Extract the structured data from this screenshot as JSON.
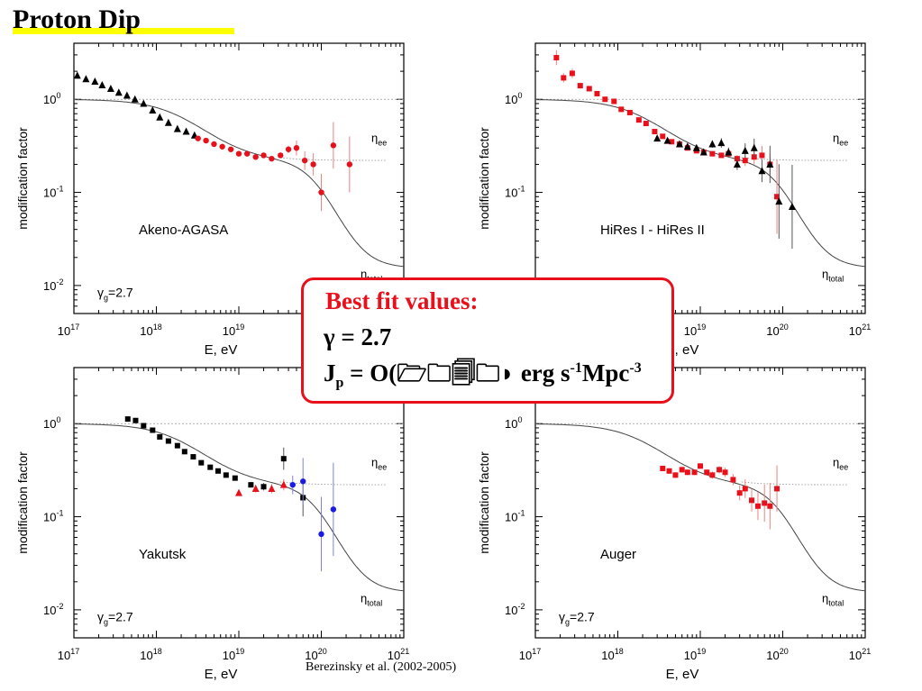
{
  "slide": {
    "title": "Proton Dip",
    "citation": "Berezinsky et al.  (2002-2005)"
  },
  "fit_box": {
    "title": "Best fit values:",
    "gamma": "γ = 2.7",
    "jp_prefix": "J",
    "jp_sub": "p",
    "jp_middle": " = O(",
    "jp_garbled": "🗁🗀🗐🗀◗",
    "jp_units": "  erg s",
    "jp_sup1": "-1",
    "jp_units2": "Mpc",
    "jp_sup2": "-3"
  },
  "colors": {
    "red": "#e8101a",
    "black": "#000000",
    "blue": "#1a1ae6",
    "curve": "#444444",
    "ref": "#999999",
    "highlight": "#ffff00"
  },
  "chart_data": [
    {
      "type": "scatter",
      "panel": "Akeno-AGASA",
      "log_x": true,
      "log_y": true,
      "xlim": [
        1e+17,
        1e+21
      ],
      "ylim": [
        0.005,
        4
      ],
      "xlabel": "E, eV",
      "ylabel": "modification factor",
      "x_ticks": [
        "10^17",
        "10^18",
        "10^19",
        "10^20",
        "10^21"
      ],
      "y_ticks": [
        "10^-2",
        "10^-1",
        "10^0"
      ],
      "label": "Akeno-AGASA",
      "gamma_label": "γg=2.7",
      "curve_labels": {
        "eta_ee": "ηee",
        "eta_total": "ηtotal"
      },
      "series": [
        {
          "name": "Akeno",
          "marker": "triangle",
          "color": "black",
          "x": [
            1.1e+17,
            1.4e+17,
            1.8e+17,
            2.2e+17,
            2.8e+17,
            3.5e+17,
            4.4e+17,
            5.5e+17,
            7e+17,
            9e+17,
            1.1e+18,
            1.4e+18,
            1.8e+18,
            2.3e+18,
            2.9e+18
          ],
          "y": [
            1.8,
            1.65,
            1.55,
            1.42,
            1.3,
            1.18,
            1.1,
            1.0,
            0.9,
            0.76,
            0.64,
            0.56,
            0.48,
            0.45,
            0.41
          ]
        },
        {
          "name": "AGASA",
          "marker": "circle",
          "color": "red",
          "x": [
            3.2e+18,
            4e+18,
            5e+18,
            6.3e+18,
            8e+18,
            1e+19,
            1.26e+19,
            1.6e+19,
            2e+19,
            2.5e+19,
            3.2e+19,
            4e+19,
            5e+19,
            6.3e+19,
            8e+19,
            1e+20,
            1.4e+20,
            2.2e+20
          ],
          "y": [
            0.38,
            0.36,
            0.33,
            0.31,
            0.29,
            0.26,
            0.26,
            0.24,
            0.25,
            0.23,
            0.25,
            0.29,
            0.3,
            0.22,
            0.2,
            0.1,
            0.32,
            0.2
          ],
          "yerr_log": [
            0.02,
            0.02,
            0.02,
            0.02,
            0.02,
            0.02,
            0.02,
            0.02,
            0.02,
            0.02,
            0.03,
            0.04,
            0.08,
            0.1,
            0.12,
            0.2,
            0.25,
            0.3
          ]
        }
      ]
    },
    {
      "type": "scatter",
      "panel": "HiRes I - HiRes II",
      "log_x": true,
      "log_y": true,
      "xlim": [
        1e+17,
        1e+21
      ],
      "ylim": [
        0.005,
        4
      ],
      "xlabel": "E, eV",
      "ylabel": "modification factor",
      "x_ticks": [
        "10^17",
        "10^18",
        "10^19",
        "10^20",
        "10^21"
      ],
      "y_ticks": [
        "10^-2",
        "10^-1",
        "10^0"
      ],
      "label": "HiRes I - HiRes II",
      "gamma_label": "γg=2.7",
      "curve_labels": {
        "eta_ee": "ηee",
        "eta_total": "ηtotal"
      },
      "series": [
        {
          "name": "HiRes I",
          "marker": "square",
          "color": "red",
          "x": [
            1.8e+17,
            2.2e+17,
            2.8e+17,
            3.5e+17,
            4.5e+17,
            5.6e+17,
            7e+17,
            9e+17,
            1.1e+18,
            1.4e+18,
            1.8e+18,
            2.2e+18,
            2.8e+18,
            3.5e+18,
            4.5e+18,
            5.6e+18,
            7e+18,
            9e+18,
            1.1e+19,
            1.4e+19,
            1.8e+19,
            2.2e+19,
            2.8e+19,
            3.5e+19,
            4.5e+19,
            5.6e+19,
            7e+19,
            8.5e+19
          ],
          "y": [
            2.8,
            1.7,
            1.9,
            1.4,
            1.3,
            1.15,
            1.0,
            0.95,
            0.78,
            0.72,
            0.6,
            0.55,
            0.45,
            0.4,
            0.35,
            0.33,
            0.3,
            0.28,
            0.27,
            0.26,
            0.25,
            0.26,
            0.23,
            0.22,
            0.24,
            0.25,
            0.2,
            0.09
          ],
          "yerr_log": [
            0.08,
            0.05,
            0.05,
            0.03,
            0.03,
            0.02,
            0.02,
            0.02,
            0.02,
            0.02,
            0.02,
            0.02,
            0.02,
            0.02,
            0.02,
            0.02,
            0.02,
            0.02,
            0.02,
            0.02,
            0.03,
            0.03,
            0.04,
            0.06,
            0.08,
            0.1,
            0.12,
            0.4
          ]
        },
        {
          "name": "HiRes II",
          "marker": "triangle",
          "color": "black",
          "x": [
            3e+18,
            4e+18,
            5.6e+18,
            7e+18,
            9e+18,
            1.1e+19,
            1.4e+19,
            1.8e+19,
            2.2e+19,
            2.8e+19,
            3.5e+19,
            4.5e+19,
            5.6e+19,
            7e+19,
            9e+19,
            1.3e+20
          ],
          "y": [
            0.38,
            0.36,
            0.33,
            0.31,
            0.3,
            0.27,
            0.33,
            0.34,
            0.27,
            0.2,
            0.28,
            0.3,
            0.17,
            0.2,
            0.08,
            0.07
          ],
          "yerr_log": [
            0.02,
            0.02,
            0.02,
            0.02,
            0.02,
            0.03,
            0.04,
            0.05,
            0.05,
            0.06,
            0.08,
            0.1,
            0.12,
            0.2,
            0.4,
            0.45
          ]
        }
      ]
    },
    {
      "type": "scatter",
      "panel": "Yakutsk",
      "log_x": true,
      "log_y": true,
      "xlim": [
        1e+17,
        1e+21
      ],
      "ylim": [
        0.005,
        4
      ],
      "xlabel": "E, eV",
      "ylabel": "modification factor",
      "x_ticks": [
        "10^17",
        "10^18",
        "10^19",
        "10^20",
        "10^21"
      ],
      "y_ticks": [
        "10^-2",
        "10^-1",
        "10^0"
      ],
      "label": "Yakutsk",
      "gamma_label": "γg=2.7",
      "curve_labels": {
        "eta_ee": "ηee",
        "eta_total": "ηtotal"
      },
      "series": [
        {
          "name": "Yakutsk",
          "marker": "square",
          "color": "black",
          "x": [
            4.5e+17,
            5.6e+17,
            7e+17,
            9e+17,
            1.1e+18,
            1.4e+18,
            1.8e+18,
            2.2e+18,
            2.8e+18,
            3.5e+18,
            4.5e+18,
            5.6e+18,
            7e+18,
            9e+18,
            1.4e+19,
            2e+19,
            3.5e+19,
            6e+19
          ],
          "y": [
            1.12,
            1.08,
            0.95,
            0.85,
            0.72,
            0.65,
            0.58,
            0.5,
            0.44,
            0.38,
            0.34,
            0.31,
            0.28,
            0.26,
            0.22,
            0.21,
            0.42,
            0.16
          ],
          "yerr_log": [
            0.02,
            0.02,
            0.02,
            0.02,
            0.02,
            0.02,
            0.02,
            0.02,
            0.02,
            0.02,
            0.02,
            0.02,
            0.02,
            0.02,
            0.03,
            0.04,
            0.12,
            0.2
          ]
        },
        {
          "name": "Yakutsk red",
          "marker": "triangle",
          "color": "red",
          "x": [
            1e+19,
            1.6e+19,
            2.5e+19,
            3.5e+19
          ],
          "y": [
            0.18,
            0.2,
            0.2,
            0.22
          ],
          "yerr_log": [
            0.03,
            0.04,
            0.05,
            0.06
          ]
        },
        {
          "name": "Yakutsk blue",
          "marker": "circle",
          "color": "blue",
          "x": [
            4.5e+19,
            6e+19,
            1e+20,
            1.4e+20
          ],
          "y": [
            0.22,
            0.24,
            0.065,
            0.12
          ],
          "yerr_log": [
            0.1,
            0.25,
            0.4,
            0.5
          ]
        }
      ]
    },
    {
      "type": "scatter",
      "panel": "Auger",
      "log_x": true,
      "log_y": true,
      "xlim": [
        1e+17,
        1e+21
      ],
      "ylim": [
        0.005,
        4
      ],
      "xlabel": "E, eV",
      "ylabel": "modification factor",
      "x_ticks": [
        "10^17",
        "10^18",
        "10^19",
        "10^20",
        "10^21"
      ],
      "y_ticks": [
        "10^-2",
        "10^-1",
        "10^0"
      ],
      "label": "Auger",
      "gamma_label": "γg=2.7",
      "curve_labels": {
        "eta_ee": "ηee",
        "eta_total": "ηtotal"
      },
      "series": [
        {
          "name": "Auger",
          "marker": "square",
          "color": "red",
          "x": [
            3.5e+18,
            4.2e+18,
            5e+18,
            6e+18,
            7e+18,
            8.5e+18,
            1e+19,
            1.2e+19,
            1.4e+19,
            1.7e+19,
            2e+19,
            2.5e+19,
            3e+19,
            3.5e+19,
            4.2e+19,
            5e+19,
            6e+19,
            7e+19,
            8.5e+19
          ],
          "y": [
            0.33,
            0.31,
            0.28,
            0.32,
            0.3,
            0.3,
            0.35,
            0.3,
            0.28,
            0.32,
            0.3,
            0.25,
            0.18,
            0.2,
            0.15,
            0.13,
            0.14,
            0.13,
            0.2
          ],
          "yerr_log": [
            0.03,
            0.03,
            0.03,
            0.03,
            0.03,
            0.03,
            0.03,
            0.03,
            0.04,
            0.04,
            0.05,
            0.06,
            0.08,
            0.1,
            0.12,
            0.15,
            0.2,
            0.25,
            0.25
          ]
        }
      ]
    }
  ]
}
